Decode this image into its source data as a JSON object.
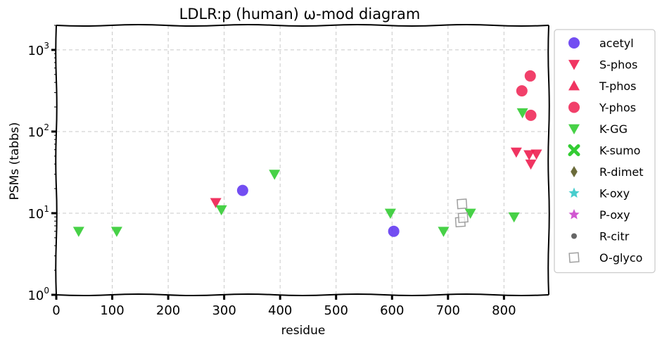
{
  "chart_data": {
    "type": "scatter",
    "title": "LDLR:p (human) ω-mod diagram",
    "xlabel": "residue",
    "ylabel": "PSMs (tabbs)",
    "xlim": [
      0,
      880
    ],
    "ylim": [
      1,
      2000
    ],
    "yscale": "log",
    "x_ticks": [
      "0",
      "100",
      "200",
      "300",
      "400",
      "500",
      "600",
      "700",
      "800"
    ],
    "x_tick_values": [
      0,
      100,
      200,
      300,
      400,
      500,
      600,
      700,
      800
    ],
    "y_ticks": [
      {
        "value": 1,
        "base": "10",
        "exp": "0"
      },
      {
        "value": 10,
        "base": "10",
        "exp": "1"
      },
      {
        "value": 100,
        "base": "10",
        "exp": "2"
      },
      {
        "value": 1000,
        "base": "10",
        "exp": "3"
      }
    ],
    "grid": true,
    "legend_position": "right",
    "series": [
      {
        "name": "acetyl",
        "marker": "circle",
        "color": "#5b2ff0",
        "points": [
          [
            333,
            19
          ],
          [
            603,
            6
          ]
        ]
      },
      {
        "name": "S-phos",
        "marker": "triangle-down",
        "color": "#ee1e50",
        "points": [
          [
            285,
            13.5
          ],
          [
            822,
            56
          ],
          [
            845,
            52
          ],
          [
            848,
            40
          ],
          [
            858,
            53
          ]
        ]
      },
      {
        "name": "T-phos",
        "marker": "triangle-up",
        "color": "#ee1e50",
        "points": []
      },
      {
        "name": "Y-phos",
        "marker": "circle",
        "color": "#ee1e50",
        "points": [
          [
            832,
            315
          ],
          [
            847,
            480
          ],
          [
            848,
            158
          ]
        ]
      },
      {
        "name": "K-GG",
        "marker": "triangle-down",
        "color": "#33cc33",
        "points": [
          [
            40,
            6
          ],
          [
            108,
            6
          ],
          [
            295,
            11
          ],
          [
            390,
            30
          ],
          [
            597,
            10
          ],
          [
            692,
            6
          ],
          [
            740,
            10
          ],
          [
            818,
            9
          ],
          [
            833,
            170
          ]
        ]
      },
      {
        "name": "K-sumo",
        "marker": "x",
        "color": "#33cc33",
        "points": []
      },
      {
        "name": "R-dimet",
        "marker": "diamond",
        "color": "#6b6b3a",
        "points": []
      },
      {
        "name": "K-oxy",
        "marker": "star",
        "color": "#33c8c8",
        "points": []
      },
      {
        "name": "P-oxy",
        "marker": "star",
        "color": "#cc44cc",
        "points": []
      },
      {
        "name": "R-citr",
        "marker": "dot",
        "color": "#666666",
        "points": []
      },
      {
        "name": "O-glyco",
        "marker": "square-open",
        "color": "#a0a0a0",
        "points": [
          [
            722,
            7.8
          ],
          [
            727,
            8.8
          ],
          [
            725,
            13
          ]
        ]
      }
    ]
  }
}
